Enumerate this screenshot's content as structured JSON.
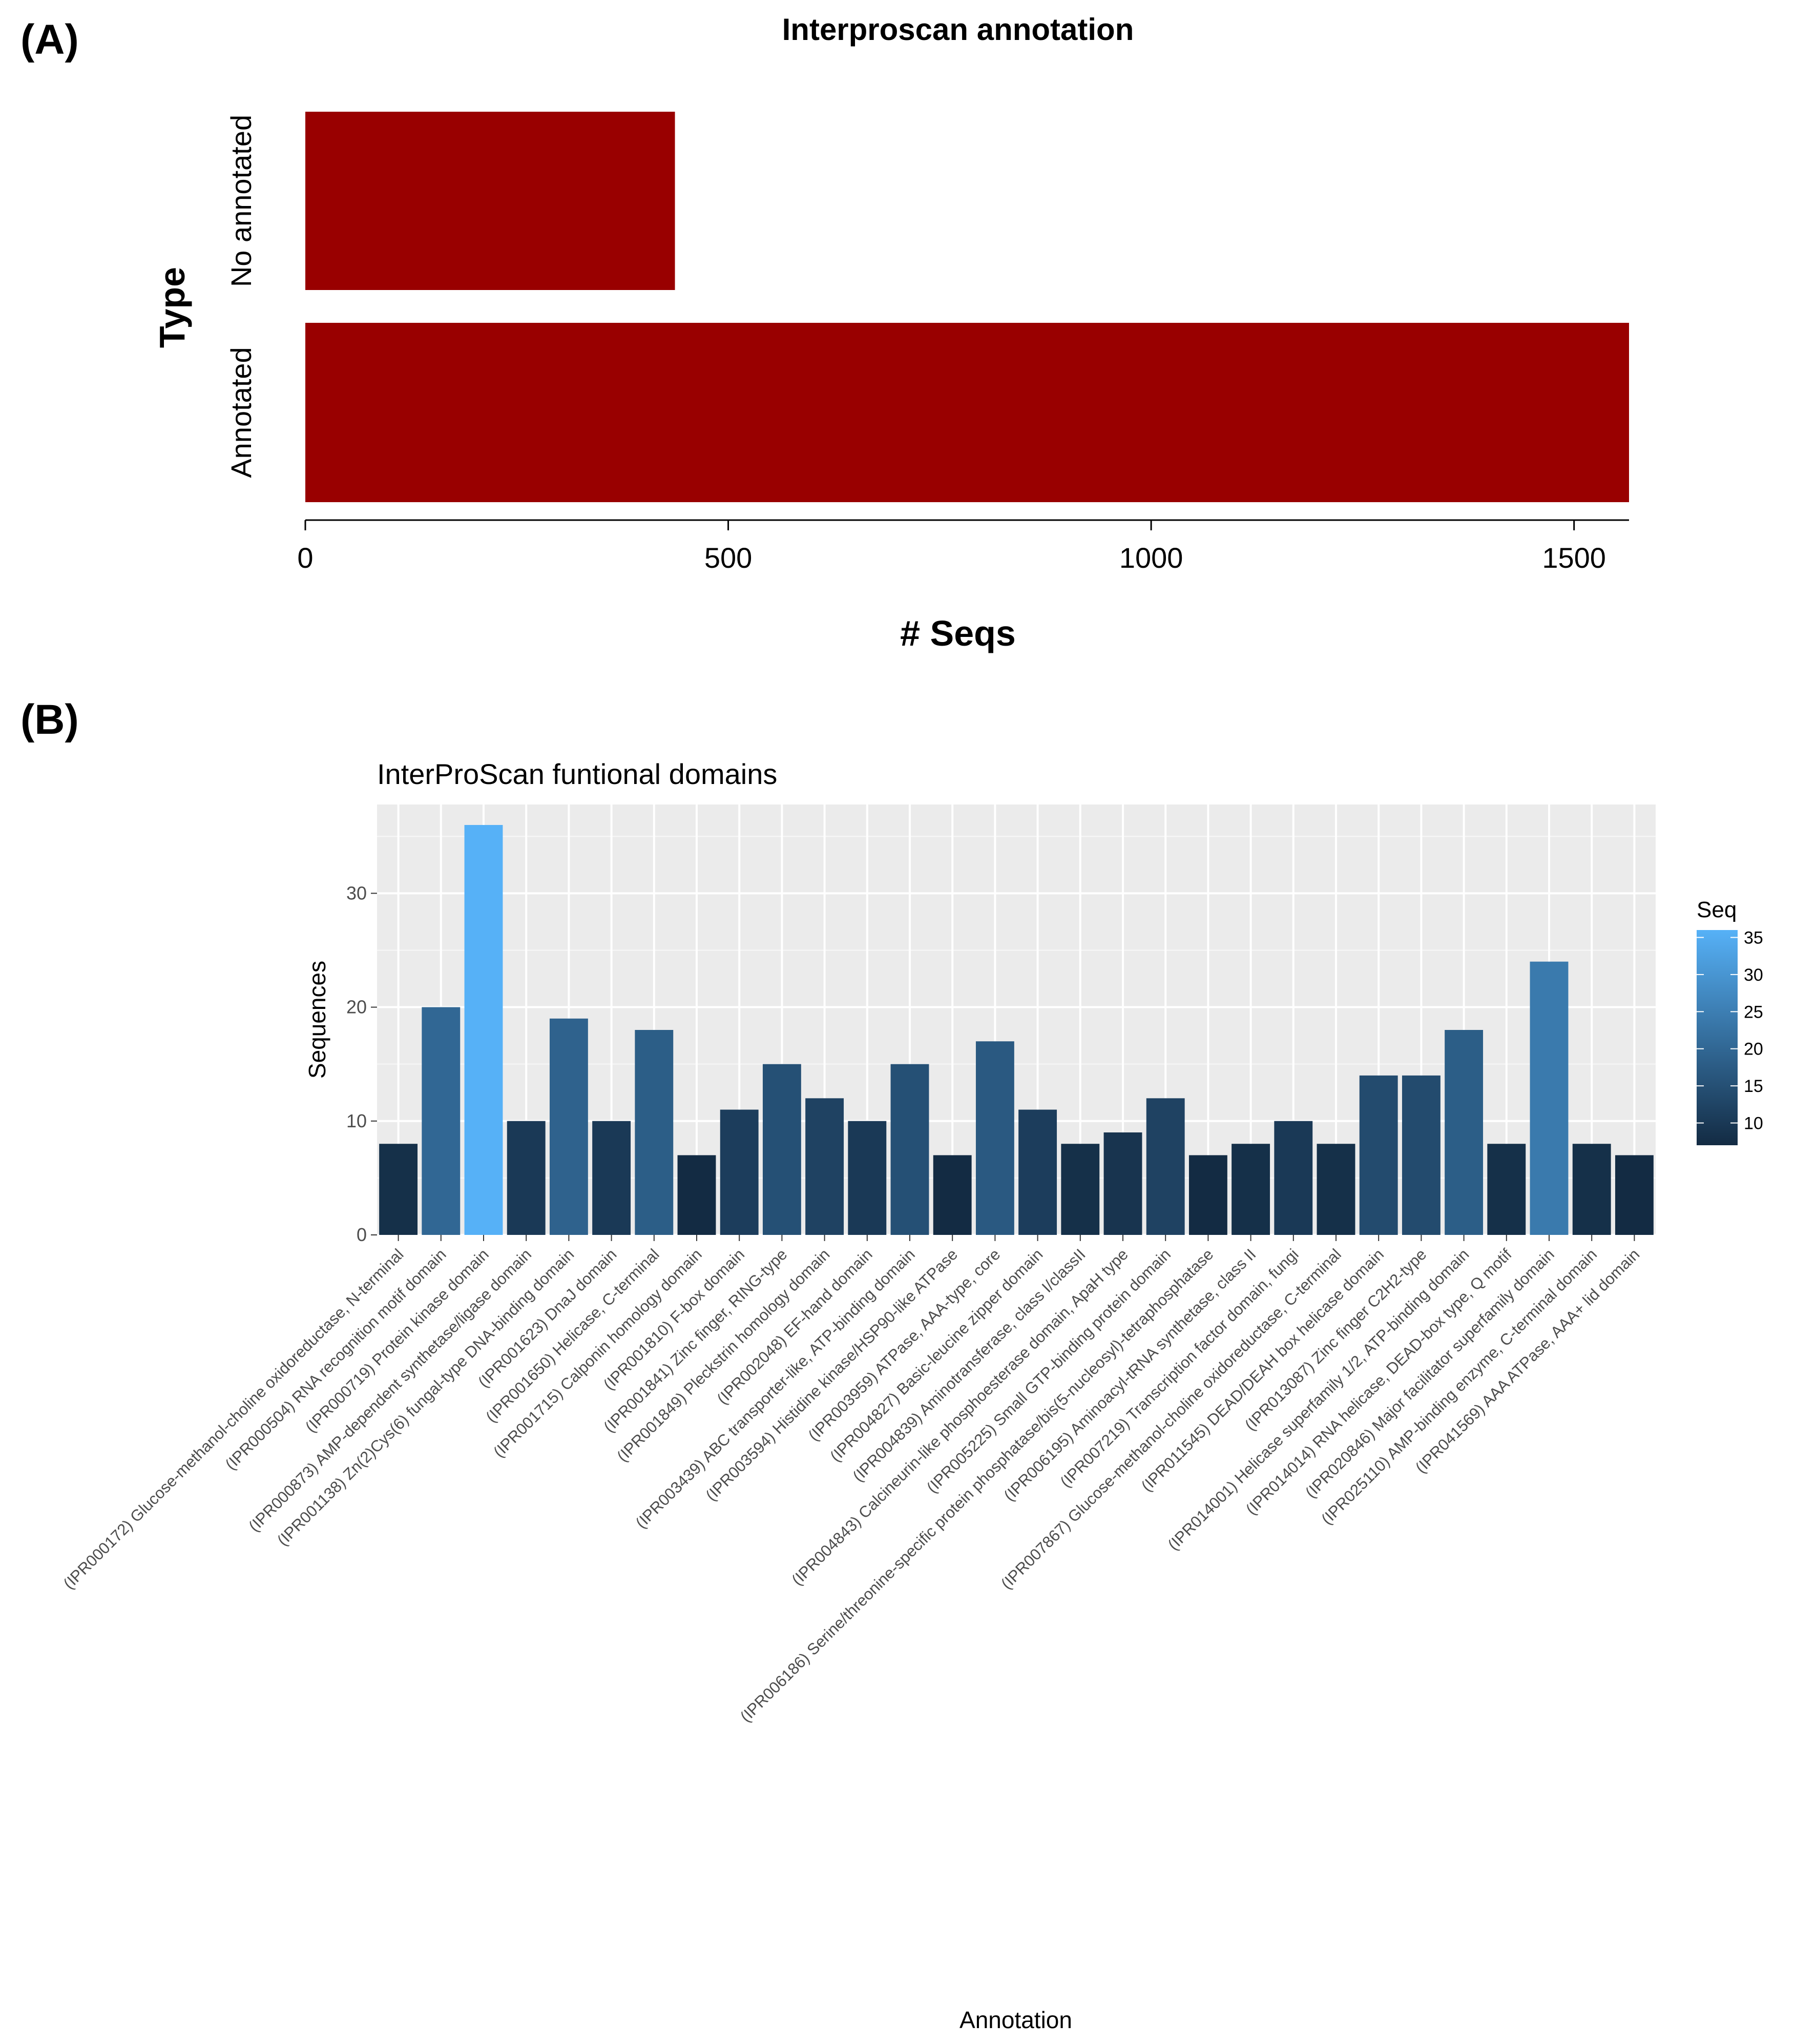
{
  "chart_data": [
    {
      "type": "bar",
      "orientation": "horizontal",
      "panel_label": "(A)",
      "title": "Interproscan annotation",
      "xlabel": "# Seqs",
      "ylabel": "Type",
      "categories": [
        "Annotated",
        "No annotated"
      ],
      "values": [
        1565,
        437
      ],
      "xlim": [
        0,
        1565
      ],
      "xticks": [
        0,
        500,
        1000,
        1500
      ],
      "bar_color": "#990000",
      "grid": false
    },
    {
      "type": "bar",
      "orientation": "vertical",
      "panel_label": "(B)",
      "title": "InterProScan funtional domains",
      "xlabel": "Annotation",
      "ylabel": "Sequences",
      "ylim": [
        0,
        37.8
      ],
      "yticks": [
        0,
        10,
        20,
        30
      ],
      "grid": true,
      "panel_background": "#ebebeb",
      "legend": {
        "title": "Seq",
        "placement": "right",
        "ticks": [
          10,
          15,
          20,
          25,
          30,
          35
        ],
        "min": 7,
        "max": 36,
        "color_low": "#132b43",
        "color_high": "#56b1f7"
      },
      "categories": [
        "(IPR000172) Glucose-methanol-choline oxidoreductase, N-terminal",
        "(IPR000504) RNA recognition motif domain",
        "(IPR000719) Protein kinase domain",
        "(IPR000873) AMP-dependent synthetase/ligase domain",
        "(IPR001138) Zn(2)Cys(6) fungal-type DNA-binding domain",
        "(IPR001623) DnaJ domain",
        "(IPR001650) Helicase, C-terminal",
        "(IPR001715) Calponin homology domain",
        "(IPR001810) F-box domain",
        "(IPR001841) Zinc finger, RING-type",
        "(IPR001849) Pleckstrin homology domain",
        "(IPR002048) EF-hand domain",
        "(IPR003439) ABC transporter-like, ATP-binding domain",
        "(IPR003594) Histidine kinase/HSP90-like ATPase",
        "(IPR003959) ATPase, AAA-type, core",
        "(IPR004827) Basic-leucine zipper domain",
        "(IPR004839) Aminotransferase, class I/classII",
        "(IPR004843) Calcineurin-like phosphoesterase domain, ApaH type",
        "(IPR005225) Small GTP-binding protein domain",
        "(IPR006186) Serine/threonine-specific protein phosphatase/bis(5-nucleosyl)-tetraphosphatase",
        "(IPR006195) Aminoacyl-tRNA synthetase, class II",
        "(IPR007219) Transcription factor domain, fungi",
        "(IPR007867) Glucose-methanol-choline oxidoreductase, C-terminal",
        "(IPR011545) DEAD/DEAH box helicase domain",
        "(IPR013087) Zinc finger C2H2-type",
        "(IPR014001) Helicase superfamily 1/2, ATP-binding domain",
        "(IPR014014) RNA helicase, DEAD-box type, Q motif",
        "(IPR020846) Major facilitator superfamily domain",
        "(IPR025110) AMP-binding enzyme, C-terminal domain",
        "(IPR041569) AAA ATPase, AAA+ lid domain"
      ],
      "values": [
        8,
        20,
        36,
        10,
        19,
        10,
        18,
        7,
        11,
        15,
        12,
        10,
        15,
        7,
        17,
        11,
        8,
        9,
        12,
        7,
        8,
        10,
        8,
        14,
        14,
        18,
        8,
        24,
        8,
        7
      ]
    }
  ]
}
